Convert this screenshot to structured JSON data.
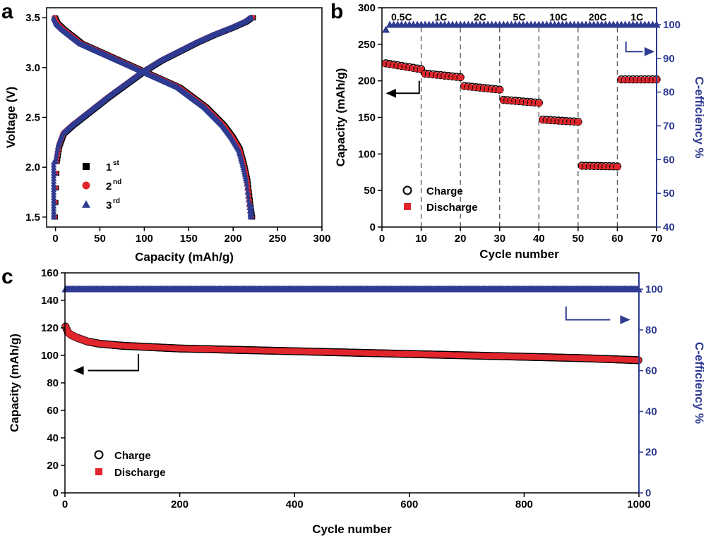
{
  "colors": {
    "red": "#e0262c",
    "blue": "#2e3b91",
    "black": "#000000"
  },
  "chart_data": [
    {
      "panel": "a",
      "type": "line",
      "xlabel": "Capacity (mAh/g)",
      "ylabel": "Voltage (V)",
      "xlim": [
        -10,
        300
      ],
      "ylim": [
        1.4,
        3.6
      ],
      "xticks": [
        "0",
        "50",
        "100",
        "150",
        "200",
        "250",
        "300"
      ],
      "yticks": [
        "1.5",
        "2.0",
        "2.5",
        "3.0",
        "3.5"
      ],
      "legend": [
        {
          "label": "1",
          "sup": "st",
          "marker": "square",
          "color": "#000000"
        },
        {
          "label": "2",
          "sup": "nd",
          "marker": "circle",
          "color": "#e0262c"
        },
        {
          "label": "3",
          "sup": "rd",
          "marker": "triangle",
          "color": "#2e3b91"
        }
      ],
      "curves": {
        "charge": {
          "x": [
            0,
            2,
            5,
            10,
            20,
            40,
            60,
            80,
            100,
            120,
            140,
            160,
            180,
            200,
            210,
            215,
            218,
            221,
            223
          ],
          "y": [
            1.5,
            2.05,
            2.22,
            2.34,
            2.42,
            2.56,
            2.7,
            2.83,
            2.96,
            3.07,
            3.16,
            3.25,
            3.33,
            3.4,
            3.44,
            3.46,
            3.48,
            3.5,
            3.5
          ]
        },
        "discharge": {
          "x": [
            0,
            3,
            10,
            30,
            60,
            100,
            140,
            170,
            190,
            200,
            208,
            213,
            217,
            220,
            222
          ],
          "y": [
            3.5,
            3.44,
            3.38,
            3.24,
            3.12,
            2.96,
            2.8,
            2.6,
            2.42,
            2.3,
            2.18,
            2.02,
            1.85,
            1.62,
            1.5
          ]
        },
        "offsets": [
          0,
          -1.2,
          -2.0
        ]
      }
    },
    {
      "panel": "b",
      "type": "scatter",
      "xlabel": "Cycle number",
      "ylabel": "Capacity (mAh/g)",
      "ylabel_right": "C-efficiency %",
      "xlim": [
        0,
        70
      ],
      "ylim": [
        0,
        300
      ],
      "ylim_right": [
        40,
        105
      ],
      "xticks": [
        "0",
        "10",
        "20",
        "30",
        "40",
        "50",
        "60",
        "70"
      ],
      "yticks": [
        "0",
        "50",
        "100",
        "150",
        "200",
        "250",
        "300"
      ],
      "yticks_right": [
        "40",
        "50",
        "60",
        "70",
        "80",
        "90",
        "100"
      ],
      "rates": [
        "0.5C",
        "1C",
        "2C",
        "5C",
        "10C",
        "20C",
        "1C"
      ],
      "rate_boundaries": [
        10,
        20,
        30,
        40,
        50,
        60
      ],
      "legend": [
        {
          "label": "Charge",
          "marker": "open-circle",
          "color": "#000000"
        },
        {
          "label": "Discharge",
          "marker": "square",
          "color": "#e0262c"
        }
      ],
      "segments": [
        {
          "start": 1,
          "end": 10,
          "from": 224,
          "to": 216
        },
        {
          "start": 11,
          "end": 20,
          "from": 210,
          "to": 205
        },
        {
          "start": 21,
          "end": 30,
          "from": 193,
          "to": 188
        },
        {
          "start": 31,
          "end": 40,
          "from": 174,
          "to": 170
        },
        {
          "start": 41,
          "end": 50,
          "from": 147,
          "to": 144
        },
        {
          "start": 51,
          "end": 60,
          "from": 84,
          "to": 83
        },
        {
          "start": 61,
          "end": 70,
          "from": 202,
          "to": 202
        }
      ],
      "efficiency": {
        "first": 98.5,
        "rest": 100
      }
    },
    {
      "panel": "c",
      "type": "scatter",
      "xlabel": "Cycle number",
      "ylabel": "Capacity (mAh/g)",
      "ylabel_right": "C-efficiency %",
      "xlim": [
        0,
        1000
      ],
      "ylim": [
        0,
        160
      ],
      "ylim_right": [
        0,
        108
      ],
      "xticks": [
        "0",
        "200",
        "400",
        "600",
        "800",
        "1000"
      ],
      "yticks": [
        "0",
        "20",
        "40",
        "60",
        "80",
        "100",
        "120",
        "140",
        "160"
      ],
      "yticks_right": [
        "0",
        "20",
        "40",
        "60",
        "80",
        "100"
      ],
      "legend": [
        {
          "label": "Charge",
          "marker": "open-circle",
          "color": "#000000"
        },
        {
          "label": "Discharge",
          "marker": "square",
          "color": "#e0262c"
        }
      ],
      "capacity": {
        "x": [
          1,
          5,
          10,
          20,
          40,
          60,
          100,
          150,
          200,
          300,
          400,
          500,
          600,
          700,
          800,
          900,
          1000
        ],
        "y": [
          121,
          117,
          115,
          113,
          110,
          108.5,
          107,
          106,
          105,
          104,
          103,
          102,
          101,
          100,
          99,
          98,
          96.5
        ]
      },
      "efficiency": 100
    }
  ],
  "labels": {
    "a": "a",
    "b": "b",
    "c": "c"
  }
}
